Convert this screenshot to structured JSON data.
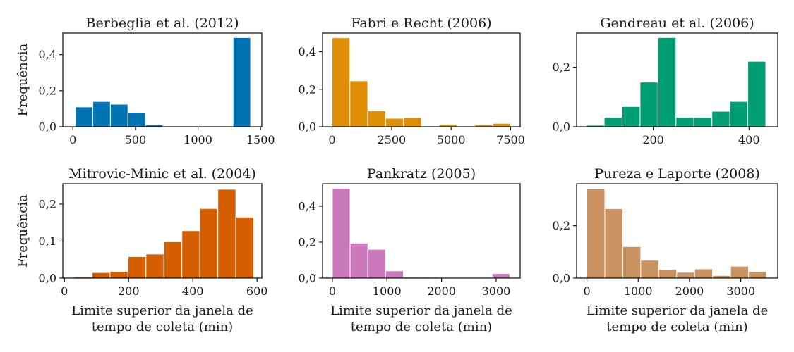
{
  "chart_data": [
    {
      "type": "bar",
      "title": "Berbeglia et al. (2012)",
      "ylabel": "Frequência",
      "xlabel": "",
      "color": "#0173b2",
      "xlim": [
        -80,
        1510
      ],
      "ylim": [
        0,
        0.52
      ],
      "xticks": [
        0,
        500,
        1000,
        1500
      ],
      "xtick_labels": [
        "0",
        "500",
        "1000",
        "1500"
      ],
      "yticks": [
        0,
        0.2,
        0.4
      ],
      "ytick_labels": [
        "0,0",
        "0,2",
        "0,4"
      ],
      "bin_edges": [
        20,
        160,
        300,
        440,
        580,
        720,
        860,
        1000,
        1140,
        1280,
        1420
      ],
      "values": [
        0.11,
        0.14,
        0.125,
        0.08,
        0.01,
        0,
        0,
        0,
        0,
        0.495
      ]
    },
    {
      "type": "bar",
      "title": "Fabri e Recht (2006)",
      "ylabel": "",
      "xlabel": "",
      "color": "#de8f05",
      "xlim": [
        -400,
        7900
      ],
      "ylim": [
        0,
        0.5
      ],
      "xticks": [
        0,
        2500,
        5000,
        7500
      ],
      "xtick_labels": [
        "0",
        "2500",
        "5000",
        "7500"
      ],
      "yticks": [
        0,
        0.2,
        0.4
      ],
      "ytick_labels": [
        "0,0",
        "0,2",
        "0,4"
      ],
      "bin_edges": [
        0,
        750,
        1500,
        2250,
        3000,
        3750,
        4500,
        5250,
        6000,
        6750,
        7500
      ],
      "values": [
        0.475,
        0.245,
        0.085,
        0.045,
        0.048,
        0,
        0.013,
        0,
        0.01,
        0.018
      ]
    },
    {
      "type": "bar",
      "title": "Gendreau et al. (2006)",
      "ylabel": "",
      "xlabel": "",
      "color": "#029e73",
      "xlim": [
        40,
        460
      ],
      "ylim": [
        0,
        0.315
      ],
      "xticks": [
        200,
        400
      ],
      "xtick_labels": [
        "200",
        "400"
      ],
      "yticks": [
        0,
        0.2
      ],
      "ytick_labels": [
        "0,0",
        "0,2"
      ],
      "bin_edges": [
        60,
        97.5,
        135,
        172.5,
        210,
        247.5,
        285,
        322.5,
        360,
        397.5,
        435
      ],
      "values": [
        0.005,
        0.032,
        0.068,
        0.15,
        0.3,
        0.032,
        0.032,
        0.052,
        0.085,
        0.22
      ]
    },
    {
      "type": "bar",
      "title": "Mitrovic-Minic et al. (2004)",
      "ylabel": "Frequência",
      "xlabel": "Limite superior da janela de tempo de coleta (min)",
      "color": "#d55e00",
      "xlim": [
        -5,
        615
      ],
      "ylim": [
        0,
        0.255
      ],
      "xticks": [
        0,
        200,
        400,
        600
      ],
      "xtick_labels": [
        "0",
        "200",
        "400",
        "600"
      ],
      "yticks": [
        0,
        0.1,
        0.2
      ],
      "ytick_labels": [
        "0,0",
        "0,1",
        "0,2"
      ],
      "bin_edges": [
        30,
        86,
        142,
        198,
        254,
        310,
        366,
        422,
        478,
        534,
        590
      ],
      "values": [
        0.003,
        0.015,
        0.018,
        0.058,
        0.065,
        0.098,
        0.128,
        0.188,
        0.24,
        0.165
      ]
    },
    {
      "type": "bar",
      "title": "Pankratz (2005)",
      "ylabel": "",
      "xlabel": "Limite superior da janela de tempo de coleta (min)",
      "color": "#cc78bc",
      "xlim": [
        -180,
        3440
      ],
      "ylim": [
        0,
        0.525
      ],
      "xticks": [
        0,
        1000,
        2000,
        3000
      ],
      "xtick_labels": [
        "0",
        "1000",
        "2000",
        "3000"
      ],
      "yticks": [
        0,
        0.2,
        0.4
      ],
      "ytick_labels": [
        "0,0",
        "0,2",
        "0,4"
      ],
      "bin_edges": [
        0,
        325,
        650,
        975,
        1300,
        1625,
        1950,
        2275,
        2600,
        2925,
        3250
      ],
      "values": [
        0.5,
        0.195,
        0.16,
        0.04,
        0.005,
        0.005,
        0,
        0,
        0.003,
        0.025
      ]
    },
    {
      "type": "bar",
      "title": "Pureza e Laporte (2008)",
      "ylabel": "",
      "xlabel": "Limite superior da janela de tempo de coleta (min)",
      "color": "#ca9161",
      "xlim": [
        -200,
        3720
      ],
      "ylim": [
        0,
        0.36
      ],
      "xticks": [
        0,
        1000,
        2000,
        3000
      ],
      "xtick_labels": [
        "0",
        "1000",
        "2000",
        "3000"
      ],
      "yticks": [
        0,
        0.2
      ],
      "ytick_labels": [
        "0,0",
        "0,2"
      ],
      "bin_edges": [
        0,
        350,
        700,
        1050,
        1400,
        1750,
        2100,
        2450,
        2800,
        3150,
        3500
      ],
      "values": [
        0.34,
        0.265,
        0.12,
        0.068,
        0.033,
        0.022,
        0.035,
        0.01,
        0.045,
        0.025
      ]
    }
  ]
}
